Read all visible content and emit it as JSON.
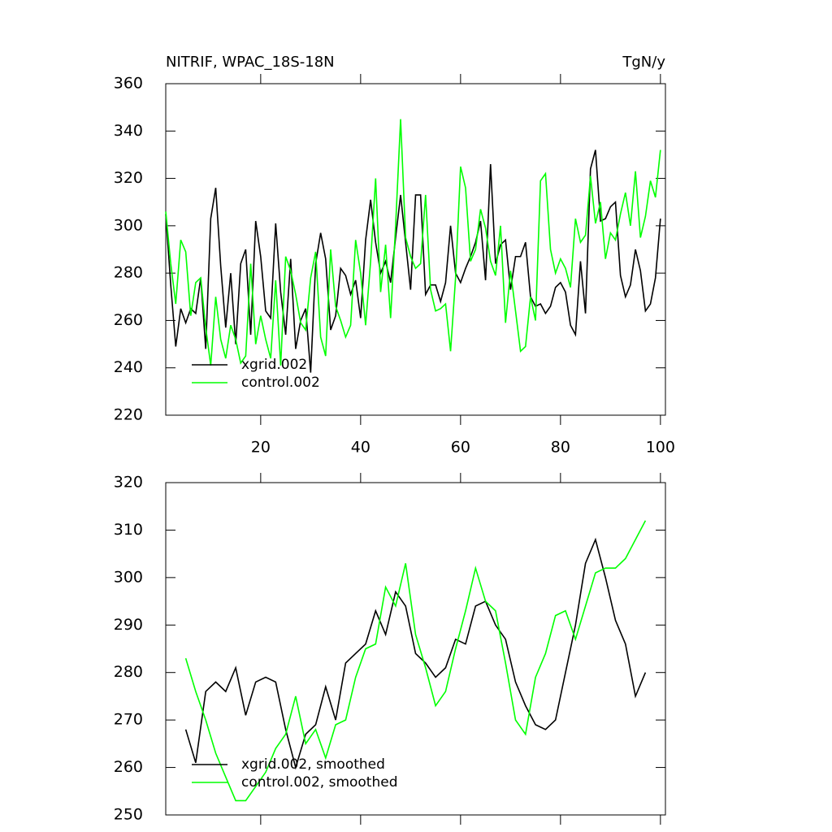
{
  "chart_data": [
    {
      "type": "line",
      "title": "NITRIF, WPAC_18S-18N",
      "units": "TgN/y",
      "x": [
        1,
        2,
        3,
        4,
        5,
        6,
        7,
        8,
        9,
        10,
        11,
        12,
        13,
        14,
        15,
        16,
        17,
        18,
        19,
        20,
        21,
        22,
        23,
        24,
        25,
        26,
        27,
        28,
        29,
        30,
        31,
        32,
        33,
        34,
        35,
        36,
        37,
        38,
        39,
        40,
        41,
        42,
        43,
        44,
        45,
        46,
        47,
        48,
        49,
        50,
        51,
        52,
        53,
        54,
        55,
        56,
        57,
        58,
        59,
        60,
        61,
        62,
        63,
        64,
        65,
        66,
        67,
        68,
        69,
        70,
        71,
        72,
        73,
        74,
        75,
        76,
        77,
        78,
        79,
        80,
        81,
        82,
        83,
        84,
        85,
        86,
        87,
        88,
        89,
        90,
        91,
        92,
        93,
        94,
        95,
        96,
        97,
        98,
        99,
        100
      ],
      "series": [
        {
          "name": "xgrid.002",
          "color": "#000000",
          "values": [
            305,
            275,
            249,
            265,
            259,
            265,
            263,
            278,
            248,
            303,
            316,
            283,
            257,
            280,
            250,
            284,
            290,
            254,
            302,
            287,
            264,
            261,
            301,
            272,
            254,
            286,
            248,
            260,
            265,
            238,
            284,
            297,
            286,
            256,
            262,
            282,
            279,
            271,
            277,
            261,
            294,
            311,
            293,
            280,
            285,
            276,
            295,
            313,
            293,
            273,
            313,
            313,
            271,
            275,
            275,
            268,
            276,
            300,
            280,
            276,
            282,
            287,
            293,
            302,
            277,
            326,
            284,
            292,
            294,
            273,
            287,
            287,
            293,
            270,
            266,
            267,
            263,
            266,
            274,
            276,
            272,
            258,
            254,
            285,
            263,
            324,
            332,
            302,
            303,
            308,
            310,
            279,
            270,
            275,
            290,
            281,
            264,
            267,
            278,
            303
          ]
        },
        {
          "name": "control.002",
          "color": "#00ff00",
          "values": [
            306,
            284,
            267,
            294,
            289,
            262,
            276,
            278,
            257,
            241,
            270,
            252,
            244,
            258,
            252,
            242,
            245,
            284,
            250,
            262,
            252,
            244,
            277,
            241,
            287,
            281,
            271,
            259,
            256,
            278,
            289,
            253,
            245,
            290,
            266,
            260,
            253,
            258,
            294,
            280,
            258,
            285,
            320,
            272,
            292,
            261,
            300,
            345,
            295,
            287,
            282,
            284,
            313,
            273,
            264,
            265,
            267,
            247,
            278,
            325,
            316,
            285,
            290,
            307,
            299,
            285,
            279,
            300,
            259,
            281,
            264,
            247,
            249,
            270,
            260,
            319,
            322,
            290,
            280,
            286,
            282,
            274,
            303,
            293,
            296,
            321,
            301,
            310,
            286,
            297,
            294,
            305,
            314,
            300,
            323,
            295,
            304,
            319,
            312,
            332
          ]
        }
      ],
      "xlim": [
        1,
        101
      ],
      "ylim": [
        220,
        360
      ],
      "xticks": [
        20,
        40,
        60,
        80,
        100
      ],
      "yticks": [
        220,
        240,
        260,
        280,
        300,
        320,
        340,
        360
      ],
      "legend": "lower left"
    },
    {
      "type": "line",
      "x": [
        5,
        7,
        9,
        11,
        13,
        15,
        17,
        19,
        21,
        23,
        25,
        27,
        29,
        31,
        33,
        35,
        37,
        39,
        41,
        43,
        45,
        47,
        49,
        51,
        53,
        55,
        57,
        59,
        61,
        63,
        65,
        67,
        69,
        71,
        73,
        75,
        77,
        79,
        81,
        83,
        85,
        87,
        89,
        91,
        93,
        95,
        97
      ],
      "series": [
        {
          "name": "xgrid.002, smoothed",
          "color": "#000000",
          "values": [
            268,
            261,
            276,
            278,
            276,
            281,
            271,
            278,
            279,
            278,
            268,
            260,
            267,
            269,
            277,
            270,
            282,
            284,
            286,
            293,
            288,
            297,
            294,
            284,
            282,
            279,
            281,
            287,
            286,
            294,
            295,
            290,
            287,
            278,
            273,
            269,
            268,
            270,
            280,
            290,
            303,
            308,
            300,
            291,
            286,
            275,
            280
          ]
        },
        {
          "name": "control.002, smoothed",
          "color": "#00ff00",
          "values": [
            283,
            276,
            270,
            263,
            258,
            253,
            253,
            256,
            259,
            264,
            267,
            275,
            265,
            268,
            262,
            269,
            270,
            279,
            285,
            286,
            298,
            294,
            303,
            288,
            281,
            273,
            276,
            285,
            293,
            302,
            295,
            293,
            282,
            270,
            267,
            279,
            284,
            292,
            293,
            287,
            294,
            301,
            302,
            302,
            304,
            308,
            312
          ]
        }
      ],
      "xlim": [
        1,
        101
      ],
      "ylim": [
        250,
        320
      ],
      "xticks": [
        20,
        40,
        60,
        80,
        100
      ],
      "yticks": [
        250,
        260,
        270,
        280,
        290,
        300,
        310,
        320
      ],
      "legend": "lower left",
      "show_xtick_labels": false
    }
  ]
}
